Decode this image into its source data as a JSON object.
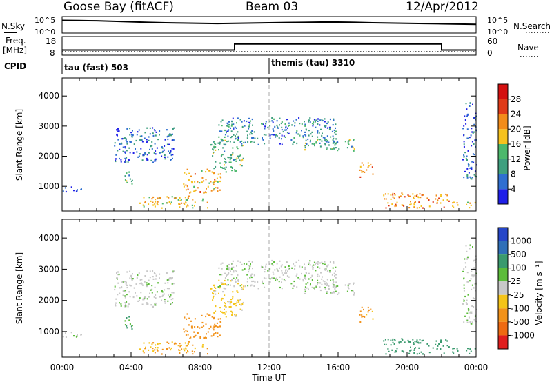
{
  "header": {
    "site": "Goose Bay (fitACF)",
    "beam": "Beam 03",
    "date": "12/Apr/2012"
  },
  "noise_panel": {
    "left_label": "N.Sky",
    "left_ticks": [
      "10^5",
      "10^0"
    ],
    "right_ticks": [
      "10^5",
      "10^0"
    ],
    "right_label": "N.Search"
  },
  "freq_panel": {
    "left_label_line1": "Freq.",
    "left_label_line2": "[MHz]",
    "left_ticks": [
      "18",
      "8"
    ],
    "right_ticks": [
      "60",
      "0"
    ],
    "right_label": "Nave",
    "cpid_label": "CPID",
    "cpid_segments": [
      {
        "name": "tau (fast) 503",
        "start_hour": 0
      },
      {
        "name": "themis (tau) 3310",
        "start_hour": 12
      }
    ]
  },
  "x_axis": {
    "label": "Time UT",
    "tick_labels": [
      "00:00",
      "04:00",
      "08:00",
      "12:00",
      "16:00",
      "20:00",
      "00:00"
    ]
  },
  "power_panel": {
    "ylabel": "Slant Range [km]",
    "y_tick_labels": [
      "1000",
      "2000",
      "3000",
      "4000"
    ],
    "colorbar_title": "Power [dB]",
    "colorbar_labels": [
      "4",
      "8",
      "12",
      "16",
      "20",
      "24",
      "28"
    ],
    "colors": [
      "#1f1fe8",
      "#2f6fd0",
      "#3f9f7f",
      "#4cb86c",
      "#f6c21e",
      "#f28c1a",
      "#e03a18",
      "#d41010"
    ]
  },
  "velocity_panel": {
    "ylabel": "Slant Range [km]",
    "y_tick_labels": [
      "1000",
      "2000",
      "3000",
      "4000"
    ],
    "colorbar_title": "Velocity [m s⁻¹]",
    "colorbar_labels": [
      "1000",
      "500",
      "100",
      "25",
      "-25",
      "-100",
      "-500",
      "-1000"
    ],
    "colors": [
      "#2646c8",
      "#2f6fb8",
      "#3a9a6e",
      "#5cbc3a",
      "#c8c8c8",
      "#f5c418",
      "#f2921a",
      "#ee6a12",
      "#e01e1e"
    ]
  },
  "chart_data": {
    "type": "heatmap",
    "x_range_hours": [
      0,
      24
    ],
    "y_range_km": [
      180,
      4600
    ],
    "noise_sky_log10": {
      "hours": [
        0,
        1,
        2,
        3,
        4,
        5,
        6,
        7,
        8,
        9,
        10,
        11,
        12,
        13,
        14,
        15,
        16,
        17,
        18,
        19,
        20,
        21,
        22,
        23,
        24
      ],
      "values": [
        4.6,
        4.5,
        4.4,
        4.2,
        4.0,
        3.8,
        3.6,
        3.5,
        3.4,
        3.3,
        3.4,
        3.5,
        3.6,
        3.7,
        3.8,
        3.9,
        3.9,
        3.8,
        3.6,
        3.5,
        3.4,
        3.3,
        3.2,
        3.1,
        3.0
      ]
    },
    "freq_mhz": {
      "hours": [
        0,
        10,
        10,
        22,
        22,
        24
      ],
      "values": [
        10.5,
        10.5,
        14.5,
        14.5,
        10.5,
        10.5
      ]
    },
    "nave_level": 8,
    "scatter_regions": [
      {
        "panel": "power",
        "h0": 4.3,
        "h1": 8.5,
        "r0": 300,
        "r1": 700,
        "power_db": 18,
        "velocity": -100
      },
      {
        "panel": "power",
        "h0": 7.0,
        "h1": 9.2,
        "r0": 800,
        "r1": 1600,
        "power_db": 20,
        "velocity": -300
      },
      {
        "panel": "power",
        "h0": 3.5,
        "h1": 4.2,
        "r0": 1100,
        "r1": 1500,
        "power_db": 12,
        "velocity": 100
      },
      {
        "panel": "power",
        "h0": 3.0,
        "h1": 6.5,
        "r0": 1800,
        "r1": 3000,
        "power_db": 6,
        "velocity": 10
      },
      {
        "panel": "power",
        "h0": 8.5,
        "h1": 10.5,
        "r0": 1500,
        "r1": 2700,
        "power_db": 12,
        "velocity": -40
      },
      {
        "panel": "power",
        "h0": 9.0,
        "h1": 16.0,
        "r0": 2400,
        "r1": 3300,
        "power_db": 8,
        "velocity": 10
      },
      {
        "panel": "power",
        "h0": 14.0,
        "h1": 17.0,
        "r0": 2200,
        "r1": 2600,
        "power_db": 12,
        "velocity": 10
      },
      {
        "panel": "power",
        "h0": 17.2,
        "h1": 18.0,
        "r0": 1300,
        "r1": 1800,
        "power_db": 22,
        "velocity": -150
      },
      {
        "panel": "power",
        "h0": 18.5,
        "h1": 22.5,
        "r0": 300,
        "r1": 800,
        "power_db": 22,
        "velocity": 300
      },
      {
        "panel": "power",
        "h0": 22.5,
        "h1": 24.0,
        "r0": 300,
        "r1": 500,
        "power_db": 18,
        "velocity": 200
      },
      {
        "panel": "power",
        "h0": 23.2,
        "h1": 24.0,
        "r0": 1200,
        "r1": 3800,
        "power_db": 6,
        "velocity": 10
      },
      {
        "panel": "power",
        "h0": 0.0,
        "h1": 1.2,
        "r0": 800,
        "r1": 1000,
        "power_db": 5,
        "velocity": 10
      }
    ]
  }
}
